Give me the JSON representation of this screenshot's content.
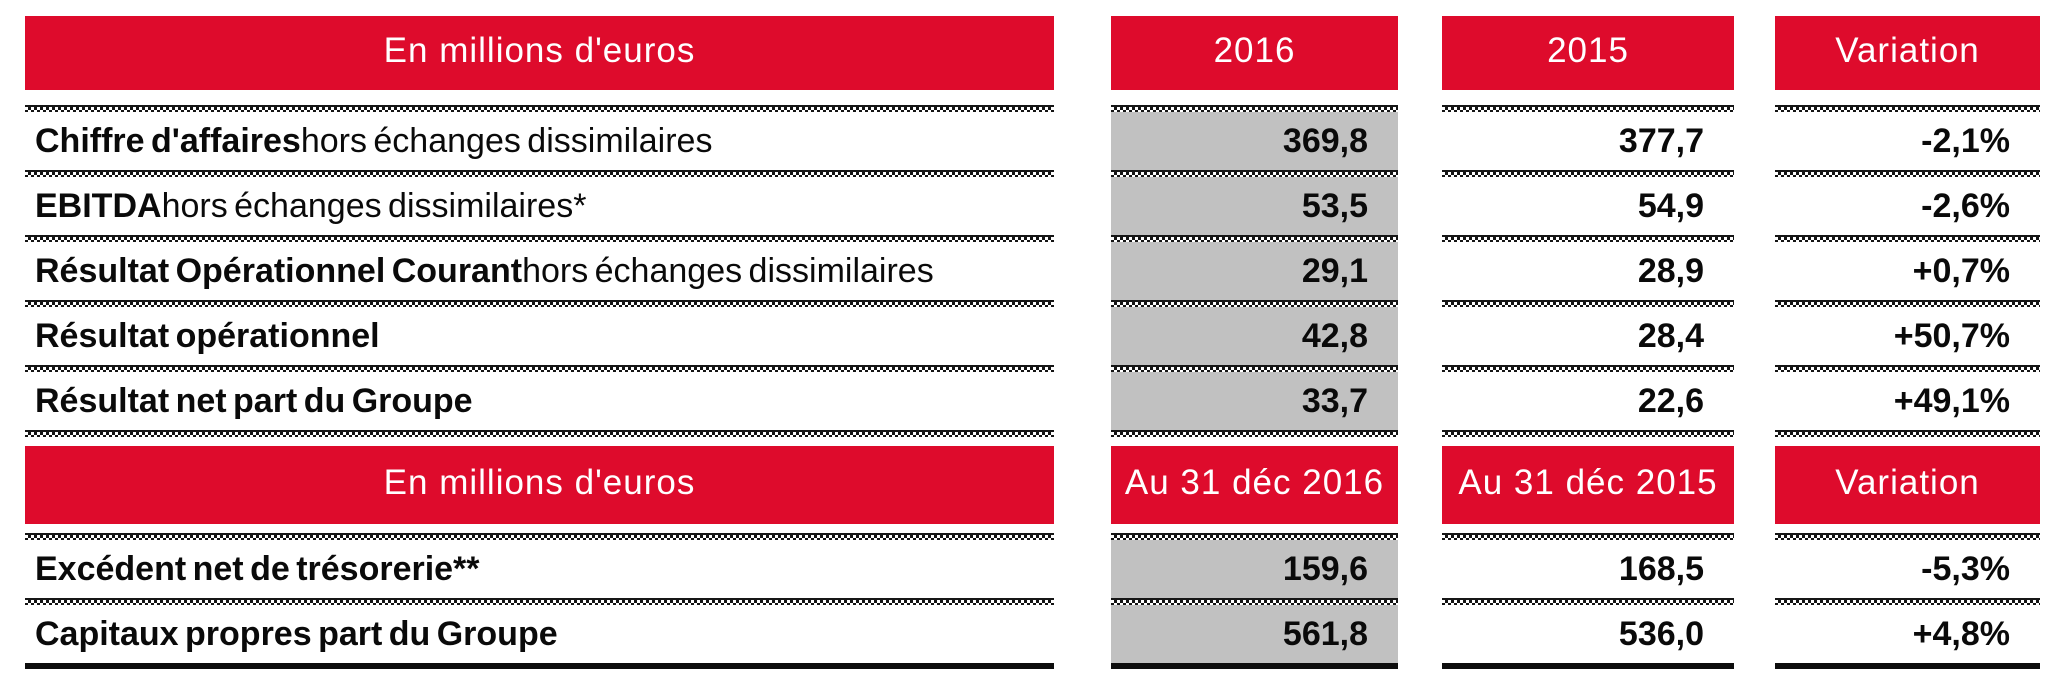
{
  "colors": {
    "header_red": "#de0b2c",
    "column_highlight_gray": "#c1c1c1",
    "text": "#0a0a0a"
  },
  "table1": {
    "header": {
      "label": "En millions d'euros",
      "col_2016": "2016",
      "col_2015": "2015",
      "col_variation": "Variation"
    },
    "rows": [
      {
        "label_bold": "Chiffre d'affaires",
        "label_regular": " hors échanges dissimilaires",
        "y2016": "369,8",
        "y2015": "377,7",
        "variation": "-2,1%"
      },
      {
        "label_bold": "EBITDA",
        "label_regular": " hors échanges dissimilaires*",
        "y2016": "53,5",
        "y2015": "54,9",
        "variation": "-2,6%"
      },
      {
        "label_bold": "Résultat Opérationnel Courant",
        "label_regular": " hors échanges dissimilaires",
        "y2016": "29,1",
        "y2015": "28,9",
        "variation": "+0,7%"
      },
      {
        "label_bold": "Résultat opérationnel",
        "label_regular": "",
        "y2016": "42,8",
        "y2015": "28,4",
        "variation": "+50,7%"
      },
      {
        "label_bold": "Résultat net part du Groupe",
        "label_regular": "",
        "y2016": "33,7",
        "y2015": "22,6",
        "variation": "+49,1%"
      }
    ]
  },
  "table2": {
    "header": {
      "label": "En millions d'euros",
      "col_2016": "Au 31 déc 2016",
      "col_2015": "Au 31 déc 2015",
      "col_variation": "Variation"
    },
    "rows": [
      {
        "label_bold": "Excédent net de trésorerie**",
        "label_regular": "",
        "y2016": "159,6",
        "y2015": "168,5",
        "variation": "-5,3%"
      },
      {
        "label_bold": "Capitaux propres part du Groupe",
        "label_regular": "",
        "y2016": "561,8",
        "y2015": "536,0",
        "variation": "+4,8%"
      }
    ]
  }
}
